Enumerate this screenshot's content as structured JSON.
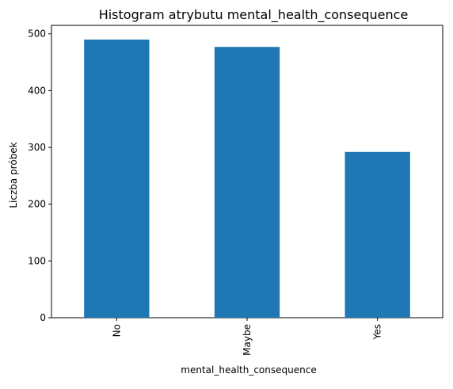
{
  "chart_data": {
    "type": "bar",
    "title": "Histogram atrybutu mental_health_consequence",
    "xlabel": "mental_health_consequence",
    "ylabel": "Liczba próbek",
    "categories": [
      "No",
      "Maybe",
      "Yes"
    ],
    "values": [
      490,
      477,
      292
    ],
    "ylim": [
      0,
      515
    ],
    "yticks": [
      0,
      100,
      200,
      300,
      400,
      500
    ],
    "bar_color": "#1f77b4",
    "grid": false,
    "legend": "none",
    "x_tick_rotation": "vertical"
  }
}
